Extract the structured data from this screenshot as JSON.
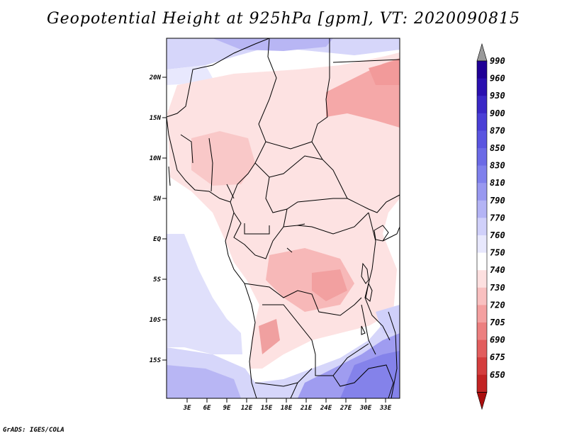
{
  "title": "Geopotential Height at 925hPa [gpm], VT: 2020090815",
  "credit": "GrADS: IGES/COLA",
  "map": {
    "type": "filled-contour",
    "variable": "Geopotential Height",
    "level": "925hPa",
    "units": "gpm",
    "valid_time": "2020090815",
    "lon_labels": [
      "3E",
      "6E",
      "9E",
      "12E",
      "15E",
      "18E",
      "21E",
      "24E",
      "27E",
      "30E",
      "33E"
    ],
    "lat_labels": [
      "20N",
      "15N",
      "10N",
      "5N",
      "EQ",
      "5S",
      "10S",
      "15S"
    ],
    "lon_range": [
      0,
      35
    ],
    "lat_range": [
      -20,
      25
    ]
  },
  "colorbar": {
    "levels": [
      "990",
      "960",
      "930",
      "900",
      "870",
      "850",
      "830",
      "810",
      "790",
      "770",
      "760",
      "750",
      "740",
      "730",
      "720",
      "705",
      "690",
      "675",
      "650"
    ],
    "colors": [
      "#1f0096",
      "#2a10b0",
      "#3a28c6",
      "#4a3fd6",
      "#5a55e0",
      "#6b6ae6",
      "#7f80ec",
      "#9898f0",
      "#b4b4f5",
      "#d0d0fa",
      "#e8e8fd",
      "#ffffff",
      "#fde0e0",
      "#f9c0c0",
      "#f4a0a0",
      "#ec7f7f",
      "#e25e5e",
      "#d43e3e",
      "#c22424",
      "#aa0e0e"
    ],
    "top_arrow_color": "#9a9a9a",
    "bottom_arrow_color": "#aa0e0e"
  }
}
